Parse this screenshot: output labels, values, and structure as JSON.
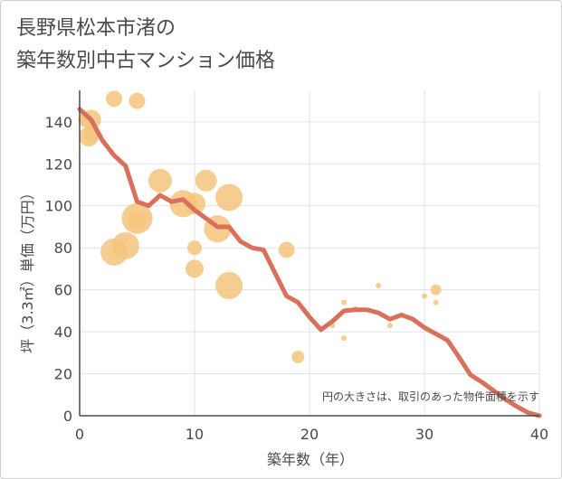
{
  "chart_data": {
    "type": "scatter",
    "title_lines": [
      "長野県松本市渚の",
      "築年数別中古マンション価格"
    ],
    "xlabel": "築年数（年）",
    "ylabel": "坪（3.3㎡）単価（万円）",
    "note": "円の大きさは、取引のあった物件面積を示す",
    "xlim": [
      0,
      40
    ],
    "ylim": [
      0,
      155
    ],
    "xticks": [
      "0",
      "10",
      "20",
      "30",
      "40"
    ],
    "yticks": [
      "0",
      "20",
      "40",
      "60",
      "80",
      "100",
      "120",
      "140"
    ],
    "grid": true,
    "colors": {
      "bubble": "#f3c47c",
      "line": "#d9705a",
      "grid": "#dde3ea",
      "axis": "#4a4a4a"
    },
    "points": [
      {
        "x": 0.5,
        "y": 141,
        "size": 8
      },
      {
        "x": 1,
        "y": 141,
        "size": 11
      },
      {
        "x": 0.8,
        "y": 133,
        "size": 11
      },
      {
        "x": 1,
        "y": 134,
        "size": 8
      },
      {
        "x": 3,
        "y": 151,
        "size": 9
      },
      {
        "x": 5,
        "y": 150,
        "size": 9
      },
      {
        "x": 3,
        "y": 78,
        "size": 15
      },
      {
        "x": 4,
        "y": 81,
        "size": 15
      },
      {
        "x": 5,
        "y": 94,
        "size": 17
      },
      {
        "x": 5,
        "y": 93,
        "size": 10
      },
      {
        "x": 7,
        "y": 112,
        "size": 13
      },
      {
        "x": 9,
        "y": 101,
        "size": 15
      },
      {
        "x": 10,
        "y": 101,
        "size": 12
      },
      {
        "x": 10,
        "y": 80,
        "size": 8
      },
      {
        "x": 10,
        "y": 70,
        "size": 10
      },
      {
        "x": 11,
        "y": 112,
        "size": 12
      },
      {
        "x": 12,
        "y": 89,
        "size": 15
      },
      {
        "x": 13,
        "y": 104,
        "size": 15
      },
      {
        "x": 13,
        "y": 62,
        "size": 15
      },
      {
        "x": 18,
        "y": 79,
        "size": 9
      },
      {
        "x": 19,
        "y": 28,
        "size": 7
      },
      {
        "x": 22,
        "y": 43,
        "size": 3
      },
      {
        "x": 23,
        "y": 54,
        "size": 3
      },
      {
        "x": 23,
        "y": 37,
        "size": 3
      },
      {
        "x": 24,
        "y": 51,
        "size": 3
      },
      {
        "x": 26,
        "y": 62,
        "size": 3
      },
      {
        "x": 27,
        "y": 43,
        "size": 3
      },
      {
        "x": 30,
        "y": 57,
        "size": 3
      },
      {
        "x": 31,
        "y": 60,
        "size": 6
      },
      {
        "x": 31,
        "y": 54,
        "size": 3
      }
    ],
    "trend": {
      "x": [
        0,
        1,
        2,
        3,
        4,
        5,
        6,
        7,
        8,
        9,
        10,
        11,
        12,
        13,
        14,
        15,
        16,
        17,
        18,
        19,
        20,
        21,
        22,
        23,
        24,
        25,
        26,
        27,
        28,
        29,
        30,
        31,
        32,
        33,
        34,
        35,
        36,
        37,
        38,
        39,
        40
      ],
      "y": [
        146,
        141,
        131,
        124,
        119,
        102,
        100,
        105,
        102,
        103,
        98,
        94,
        90,
        90,
        83,
        80,
        79,
        68,
        57,
        54,
        47,
        41,
        45,
        50,
        50.5,
        50.5,
        49,
        46,
        48,
        46,
        42,
        39,
        36,
        28,
        19.5,
        16,
        12,
        8,
        4.5,
        1.5,
        0
      ]
    }
  }
}
